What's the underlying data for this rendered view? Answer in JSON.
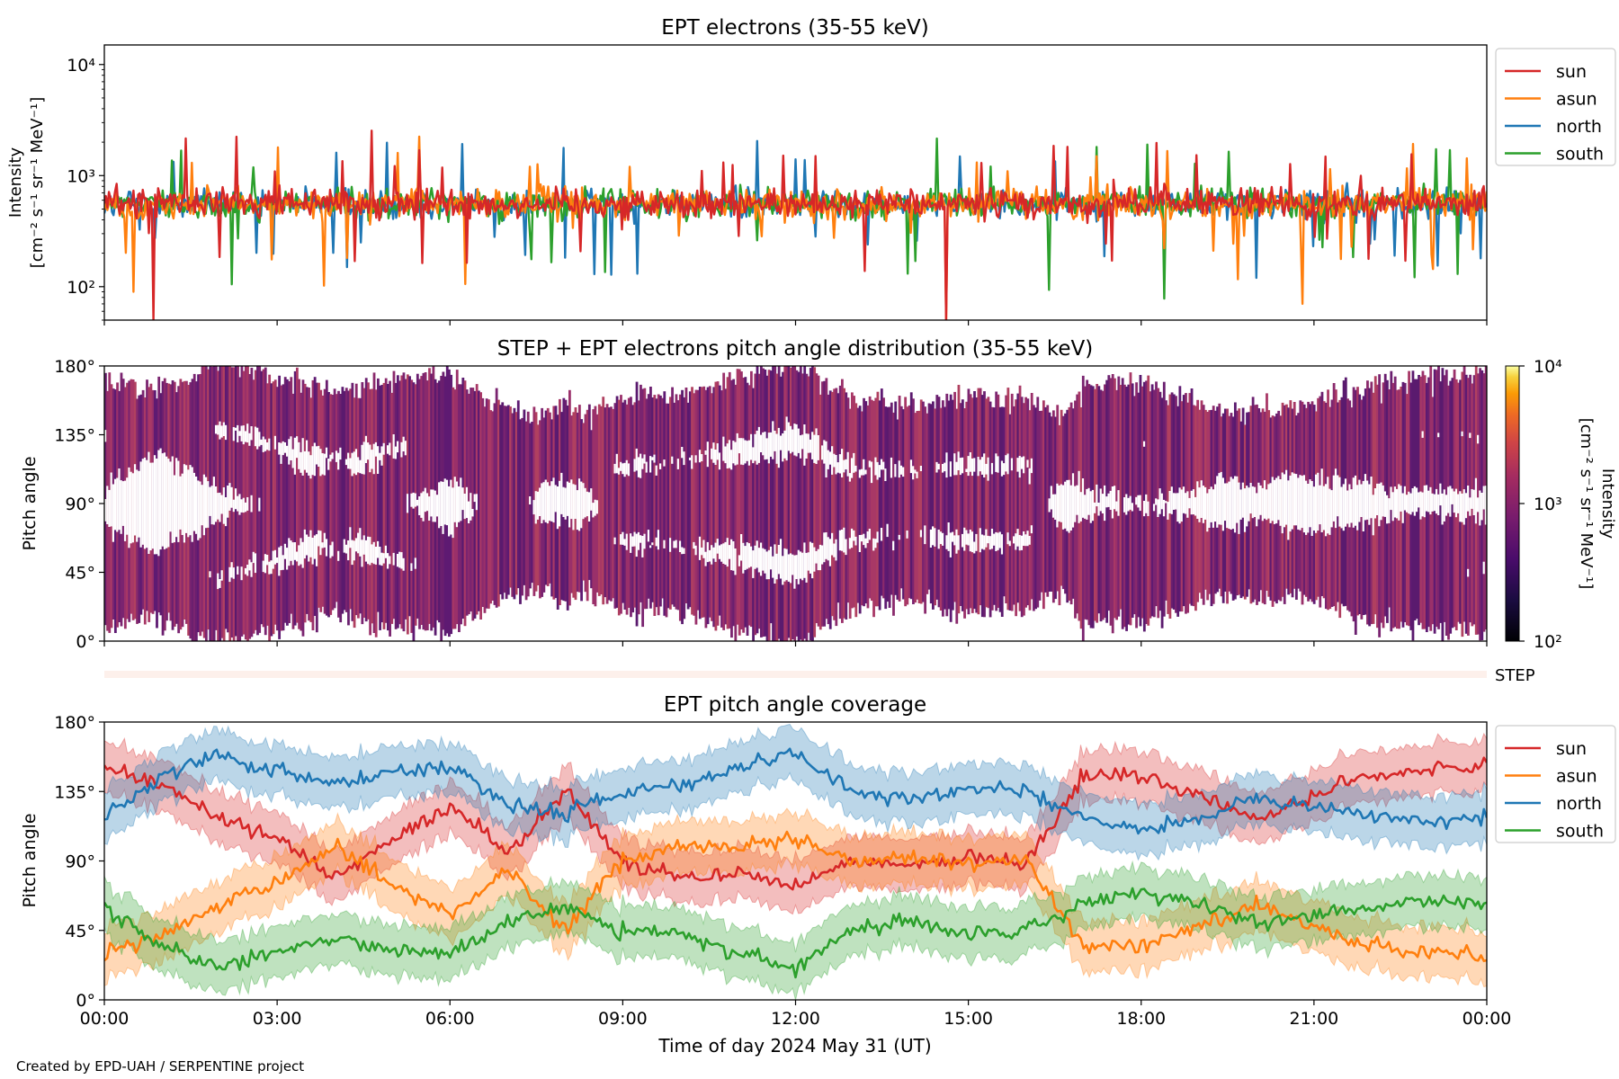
{
  "credit": "Created by EPD-UAH / SERPENTINE project",
  "x_axis": {
    "label": "Time of day 2024 May 31 (UT)",
    "ticks": [
      "00:00",
      "03:00",
      "06:00",
      "09:00",
      "12:00",
      "15:00",
      "18:00",
      "21:00",
      "00:00"
    ],
    "range_hours": [
      0,
      24
    ]
  },
  "colors": {
    "sun": "#d62728",
    "asun": "#ff7f0e",
    "north": "#1f77b4",
    "south": "#2ca02c",
    "step_strip": "#fdf0eb"
  },
  "chart_data": [
    {
      "type": "line",
      "title": "EPT electrons (35-55 keV)",
      "ylabel": [
        "Intensity",
        "[cm⁻² s⁻¹ sr⁻¹ MeV⁻¹]"
      ],
      "yscale": "log",
      "ylim": [
        50,
        15000
      ],
      "yticks": [
        100,
        1000,
        10000
      ],
      "ytick_labels": [
        "10²",
        "10³",
        "10⁴"
      ],
      "legend": "outside-right-top",
      "series": [
        {
          "name": "sun",
          "color": "#d62728",
          "typical_value": 560,
          "x": [
            0,
            0.85,
            14.6,
            24
          ],
          "y": [
            560,
            50,
            50,
            560
          ]
        },
        {
          "name": "asun",
          "color": "#ff7f0e",
          "typical_value": 560,
          "x": [
            0.5,
            5.1,
            14.6,
            20.8
          ],
          "y": [
            90,
            1600,
            50,
            70
          ]
        },
        {
          "name": "north",
          "color": "#1f77b4",
          "typical_value": 560,
          "x": [
            4.2,
            12.0,
            20.0,
            23.9
          ],
          "y": [
            150,
            1400,
            120,
            180
          ]
        },
        {
          "name": "south",
          "color": "#2ca02c",
          "typical_value": 560,
          "x": [
            2.2,
            18.4,
            23.5
          ],
          "y": [
            105,
            78,
            130
          ]
        }
      ]
    },
    {
      "type": "heatmap",
      "title": "STEP + EPT electrons pitch angle distribution (35-55 keV)",
      "ylabel": "Pitch angle",
      "ylim": [
        0,
        180
      ],
      "yticks": [
        0,
        45,
        90,
        135,
        180
      ],
      "ytick_labels": [
        "0°",
        "45°",
        "90°",
        "135°",
        "180°"
      ],
      "colorbar": {
        "label": [
          "Intensity",
          "[cm⁻² s⁻¹ sr⁻¹ MeV⁻¹]"
        ],
        "scale": "log",
        "range": [
          100,
          10000
        ],
        "tick_labels": [
          "10²",
          "10³",
          "10⁴"
        ],
        "colormap": "inferno"
      },
      "step_label": "STEP"
    },
    {
      "type": "line",
      "title": "EPT pitch angle coverage",
      "ylabel": "Pitch angle",
      "ylim": [
        0,
        180
      ],
      "yticks": [
        0,
        45,
        90,
        135,
        180
      ],
      "ytick_labels": [
        "0°",
        "45°",
        "90°",
        "135°",
        "180°"
      ],
      "band_halfwidth_deg": 15,
      "legend": "outside-right-top",
      "x": [
        0,
        1,
        2,
        3,
        4,
        5,
        6,
        7,
        8,
        9,
        10,
        11,
        12,
        13,
        14,
        15,
        16,
        17,
        18,
        19,
        20,
        21,
        22,
        23,
        24
      ],
      "series": [
        {
          "name": "sun",
          "color": "#d62728",
          "values": [
            150,
            140,
            118,
            105,
            80,
            105,
            125,
            95,
            135,
            90,
            80,
            82,
            75,
            90,
            88,
            92,
            88,
            145,
            145,
            132,
            118,
            132,
            145,
            150,
            152
          ]
        },
        {
          "name": "asun",
          "color": "#ff7f0e",
          "values": [
            30,
            42,
            62,
            75,
            100,
            75,
            55,
            85,
            45,
            90,
            100,
            98,
            105,
            90,
            92,
            88,
            92,
            35,
            35,
            48,
            62,
            48,
            35,
            30,
            28
          ]
        },
        {
          "name": "north",
          "color": "#1f77b4",
          "values": [
            118,
            145,
            158,
            150,
            140,
            148,
            150,
            128,
            120,
            135,
            138,
            150,
            160,
            135,
            130,
            138,
            135,
            118,
            110,
            118,
            130,
            125,
            120,
            115,
            118
          ]
        },
        {
          "name": "south",
          "color": "#2ca02c",
          "values": [
            60,
            35,
            22,
            30,
            40,
            32,
            30,
            52,
            60,
            45,
            42,
            30,
            20,
            45,
            50,
            42,
            45,
            62,
            70,
            62,
            50,
            55,
            60,
            65,
            62
          ]
        }
      ]
    }
  ]
}
